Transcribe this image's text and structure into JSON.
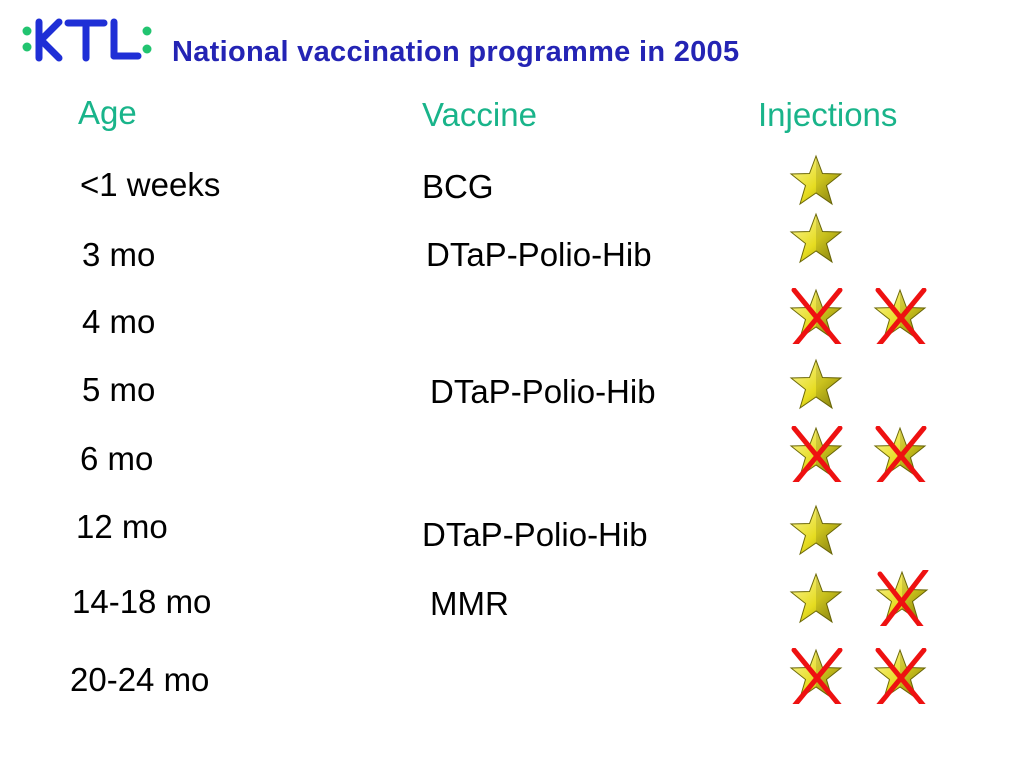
{
  "slide": {
    "title": "National vaccination programme in 2005",
    "logo_text": "KTL"
  },
  "headers": {
    "age": "Age",
    "vaccine": "Vaccine",
    "injections": "Injections"
  },
  "rows": [
    {
      "age": "<1 weeks",
      "vaccine": "BCG",
      "injections": [
        "star"
      ]
    },
    {
      "age": "3 mo",
      "vaccine": "DTaP-Polio-Hib",
      "injections": [
        "star"
      ]
    },
    {
      "age": "4 mo",
      "vaccine": "",
      "injections": [
        "star-crossed",
        "star-crossed"
      ]
    },
    {
      "age": "5 mo",
      "vaccine": "DTaP-Polio-Hib",
      "injections": [
        "star"
      ]
    },
    {
      "age": "6 mo",
      "vaccine": "",
      "injections": [
        "star-crossed",
        "star-crossed"
      ]
    },
    {
      "age": "12 mo",
      "vaccine": "DTaP-Polio-Hib",
      "injections": [
        "star"
      ]
    },
    {
      "age": "14-18 mo",
      "vaccine": "MMR",
      "injections": [
        "star",
        "star-crossed"
      ]
    },
    {
      "age": "20-24 mo",
      "vaccine": "",
      "injections": [
        "star-crossed",
        "star-crossed"
      ]
    }
  ],
  "colors": {
    "title": "#2424b4",
    "header": "#19b48a",
    "logo_blue": "#1f2fd6",
    "logo_green": "#22c470",
    "star_fill": "#e6dc20",
    "cross": "#ee1111"
  }
}
